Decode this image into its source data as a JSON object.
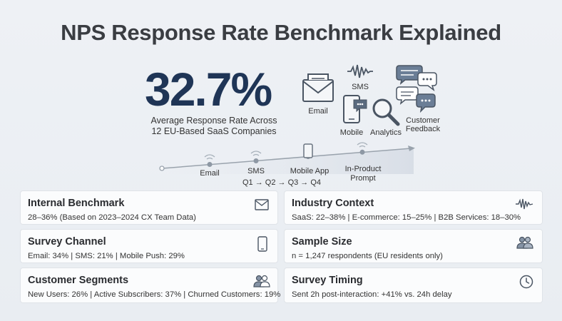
{
  "title": "NPS Response Rate Benchmark Explained",
  "hero": {
    "value": "32.7%",
    "description_line1": "Average Response Rate Across",
    "description_line2": "12 EU-Based SaaS Companies"
  },
  "channel_icons": {
    "email": "Email",
    "sms": "SMS",
    "mobile": "Mobile",
    "analytics": "Analytics",
    "feedback_line1": "Customer",
    "feedback_line2": "Feedback"
  },
  "timeline": {
    "steps": [
      "Email",
      "SMS",
      "Mobile App",
      "In-Product",
      "Prompt"
    ],
    "quarters": "Q1 → Q2 → Q3 → Q4"
  },
  "cards": {
    "internal_benchmark": {
      "title": "Internal Benchmark",
      "body": "28–36% (Based on 2023–2024 CX Team Data)",
      "icon": "envelope-icon"
    },
    "industry_context": {
      "title": "Industry Context",
      "body": "SaaS: 22–38% | E-commerce: 15–25% | B2B Services: 18–30%",
      "icon": "waveform-icon"
    },
    "survey_channel": {
      "title": "Survey Channel",
      "body": "Email: 34% | SMS: 21% | Mobile Push: 29%",
      "icon": "phone-icon"
    },
    "sample_size": {
      "title": "Sample Size",
      "body": "n = 1,247 respondents (EU residents only)",
      "icon": "people-icon"
    },
    "customer_segments": {
      "title": "Customer Segments",
      "body": "New Users: 26% | Active Subscribers: 37% | Churned Customers: 19%",
      "icon": "people-icon"
    },
    "survey_timing": {
      "title": "Survey Timing",
      "body": "Sent 2h post-interaction: +41% vs. 24h delay",
      "icon": "clock-icon"
    }
  },
  "colors": {
    "accent": "#1f3556",
    "icon_stroke": "#4a5563",
    "card_bg": "#fbfcfd"
  }
}
